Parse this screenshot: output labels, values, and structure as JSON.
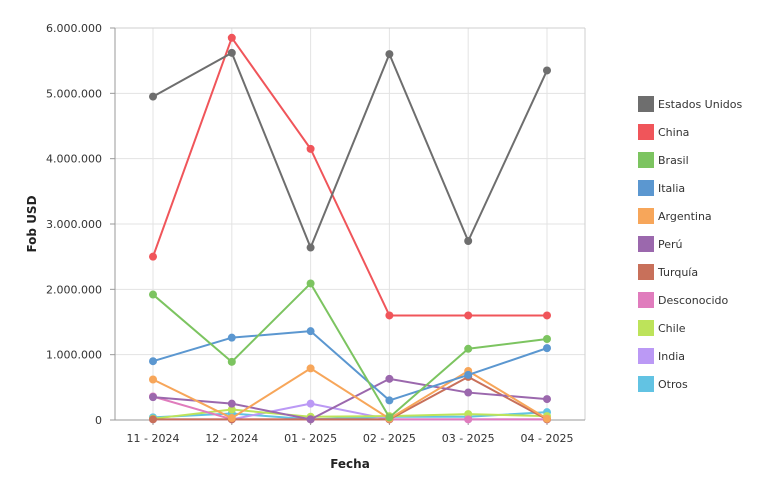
{
  "chart_data": {
    "type": "line",
    "title": "",
    "xlabel": "Fecha",
    "ylabel": "Fob USD",
    "categories": [
      "11 - 2024",
      "12 - 2024",
      "01 - 2025",
      "02 - 2025",
      "03 - 2025",
      "04 - 2025"
    ],
    "ylim": [
      0,
      6000000
    ],
    "yticks": [
      0,
      1000000,
      2000000,
      3000000,
      4000000,
      5000000,
      6000000
    ],
    "ytick_labels": [
      "0",
      "1.000.000",
      "2.000.000",
      "3.000.000",
      "4.000.000",
      "5.000.000",
      "6.000.000"
    ],
    "grid": true,
    "legend_position": "right",
    "series": [
      {
        "name": "Estados Unidos",
        "color": "#6e6e6e",
        "values": [
          4950000,
          5620000,
          2640000,
          5600000,
          2740000,
          5350000
        ]
      },
      {
        "name": "China",
        "color": "#f0555a",
        "values": [
          2500000,
          5850000,
          4150000,
          1600000,
          1600000,
          1600000
        ]
      },
      {
        "name": "Brasil",
        "color": "#7cc460",
        "values": [
          1920000,
          890000,
          2090000,
          40000,
          1090000,
          1240000
        ]
      },
      {
        "name": "Italia",
        "color": "#5b97d0",
        "values": [
          900000,
          1260000,
          1360000,
          300000,
          690000,
          1100000
        ]
      },
      {
        "name": "Argentina",
        "color": "#f7a65a",
        "values": [
          620000,
          30000,
          790000,
          20000,
          750000,
          20000
        ]
      },
      {
        "name": "Perú",
        "color": "#9b68ad",
        "values": [
          350000,
          250000,
          10000,
          630000,
          420000,
          320000
        ]
      },
      {
        "name": "Turquía",
        "color": "#c8705a",
        "values": [
          10000,
          10000,
          10000,
          10000,
          660000,
          10000
        ]
      },
      {
        "name": "Desconocido",
        "color": "#e07cbd",
        "values": [
          360000,
          10000,
          10000,
          10000,
          10000,
          10000
        ]
      },
      {
        "name": "Chile",
        "color": "#bde35a",
        "values": [
          20000,
          160000,
          50000,
          60000,
          90000,
          60000
        ]
      },
      {
        "name": "India",
        "color": "#bb99f5",
        "values": [
          10000,
          10000,
          250000,
          10000,
          10000,
          10000
        ]
      },
      {
        "name": "Otros",
        "color": "#62c3e3",
        "values": [
          40000,
          100000,
          10000,
          50000,
          50000,
          120000
        ]
      }
    ]
  }
}
